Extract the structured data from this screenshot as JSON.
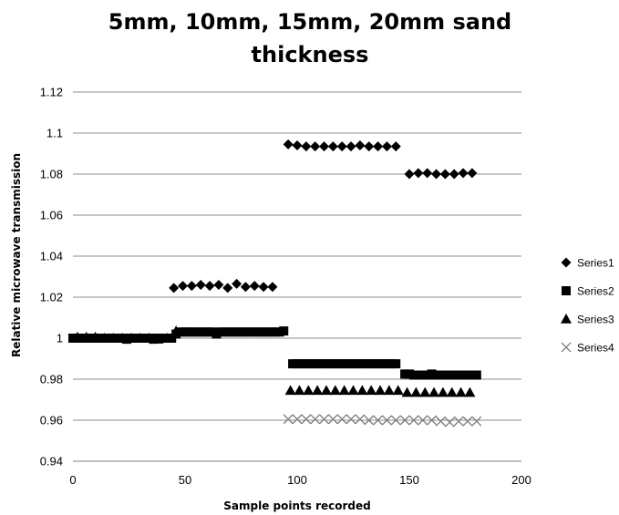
{
  "chart_data": {
    "type": "scatter",
    "title_lines": [
      "5mm, 10mm, 15mm, 20mm sand",
      "thickness"
    ],
    "xlabel": "Sample points recorded",
    "ylabel": "Relative microwave transmission",
    "xlim": [
      0,
      200
    ],
    "ylim": [
      0.94,
      1.12
    ],
    "x_ticks": [
      "0",
      "50",
      "100",
      "150",
      "200"
    ],
    "y_ticks": [
      "0.94",
      "0.96",
      "0.98",
      "1",
      "1.02",
      "1.04",
      "1.06",
      "1.08",
      "1.1",
      "1.12"
    ],
    "grid": "horizontal",
    "legend_position": "right",
    "series": [
      {
        "name": "Series1",
        "marker": "diamond",
        "color": "#000000",
        "points": [
          [
            45,
            1.0245
          ],
          [
            49,
            1.0255
          ],
          [
            53,
            1.0255
          ],
          [
            57,
            1.026
          ],
          [
            61,
            1.0255
          ],
          [
            65,
            1.026
          ],
          [
            69,
            1.0245
          ],
          [
            73,
            1.0265
          ],
          [
            77,
            1.025
          ],
          [
            81,
            1.0255
          ],
          [
            85,
            1.025
          ],
          [
            89,
            1.025
          ],
          [
            96,
            1.0945
          ],
          [
            100,
            1.094
          ],
          [
            104,
            1.0935
          ],
          [
            108,
            1.0935
          ],
          [
            112,
            1.0935
          ],
          [
            116,
            1.0935
          ],
          [
            120,
            1.0935
          ],
          [
            124,
            1.0935
          ],
          [
            128,
            1.094
          ],
          [
            132,
            1.0935
          ],
          [
            136,
            1.0935
          ],
          [
            140,
            1.0935
          ],
          [
            144,
            1.0935
          ],
          [
            150,
            1.08
          ],
          [
            154,
            1.0805
          ],
          [
            158,
            1.0805
          ],
          [
            162,
            1.08
          ],
          [
            166,
            1.08
          ],
          [
            170,
            1.08
          ],
          [
            174,
            1.0805
          ],
          [
            178,
            1.0805
          ]
        ]
      },
      {
        "name": "Series2",
        "marker": "square",
        "color": "#000000",
        "points": [
          [
            0,
            1.0
          ],
          [
            2,
            1.0
          ],
          [
            4,
            1.0
          ],
          [
            6,
            1.0
          ],
          [
            8,
            1.0
          ],
          [
            10,
            1.0
          ],
          [
            12,
            1.0
          ],
          [
            14,
            1.0
          ],
          [
            16,
            1.0
          ],
          [
            18,
            1.0
          ],
          [
            20,
            1.0
          ],
          [
            22,
            1.0
          ],
          [
            24,
            0.9995
          ],
          [
            26,
            1.0
          ],
          [
            28,
            1.0
          ],
          [
            30,
            1.0
          ],
          [
            32,
            1.0
          ],
          [
            34,
            1.0
          ],
          [
            36,
            0.9995
          ],
          [
            38,
            1.0
          ],
          [
            40,
            1.0
          ],
          [
            42,
            1.0
          ],
          [
            44,
            1.0
          ],
          [
            46,
            1.002
          ],
          [
            48,
            1.003
          ],
          [
            50,
            1.003
          ],
          [
            52,
            1.003
          ],
          [
            54,
            1.003
          ],
          [
            56,
            1.003
          ],
          [
            58,
            1.003
          ],
          [
            60,
            1.003
          ],
          [
            62,
            1.003
          ],
          [
            64,
            1.002
          ],
          [
            66,
            1.003
          ],
          [
            68,
            1.003
          ],
          [
            70,
            1.003
          ],
          [
            72,
            1.003
          ],
          [
            74,
            1.003
          ],
          [
            76,
            1.003
          ],
          [
            78,
            1.003
          ],
          [
            80,
            1.003
          ],
          [
            82,
            1.003
          ],
          [
            84,
            1.003
          ],
          [
            86,
            1.003
          ],
          [
            88,
            1.003
          ],
          [
            90,
            1.003
          ],
          [
            92,
            1.003
          ],
          [
            94,
            1.0035
          ],
          [
            98,
            0.9875
          ],
          [
            100,
            0.9875
          ],
          [
            102,
            0.9875
          ],
          [
            104,
            0.9875
          ],
          [
            106,
            0.9875
          ],
          [
            108,
            0.9875
          ],
          [
            110,
            0.9875
          ],
          [
            112,
            0.9875
          ],
          [
            114,
            0.9875
          ],
          [
            116,
            0.9875
          ],
          [
            118,
            0.9875
          ],
          [
            120,
            0.9875
          ],
          [
            122,
            0.9875
          ],
          [
            124,
            0.9875
          ],
          [
            126,
            0.9875
          ],
          [
            128,
            0.9875
          ],
          [
            130,
            0.9875
          ],
          [
            132,
            0.9875
          ],
          [
            134,
            0.9875
          ],
          [
            136,
            0.9875
          ],
          [
            138,
            0.9875
          ],
          [
            140,
            0.9875
          ],
          [
            142,
            0.9875
          ],
          [
            144,
            0.9875
          ],
          [
            148,
            0.9825
          ],
          [
            150,
            0.9825
          ],
          [
            152,
            0.982
          ],
          [
            154,
            0.982
          ],
          [
            156,
            0.982
          ],
          [
            158,
            0.982
          ],
          [
            160,
            0.9825
          ],
          [
            162,
            0.982
          ],
          [
            164,
            0.982
          ],
          [
            166,
            0.982
          ],
          [
            168,
            0.982
          ],
          [
            170,
            0.982
          ],
          [
            172,
            0.982
          ],
          [
            174,
            0.982
          ],
          [
            176,
            0.982
          ],
          [
            178,
            0.982
          ],
          [
            180,
            0.982
          ]
        ]
      },
      {
        "name": "Series3",
        "marker": "triangle",
        "color": "#000000",
        "points": [
          [
            2,
            1.0005
          ],
          [
            6,
            1.0005
          ],
          [
            10,
            1.0005
          ],
          [
            14,
            1.0
          ],
          [
            18,
            1.0
          ],
          [
            22,
            1.0
          ],
          [
            26,
            1.0
          ],
          [
            30,
            1.0
          ],
          [
            34,
            1.0
          ],
          [
            38,
            0.9995
          ],
          [
            42,
            1.0
          ],
          [
            46,
            1.0035
          ],
          [
            97,
            0.9745
          ],
          [
            101,
            0.9745
          ],
          [
            105,
            0.9745
          ],
          [
            109,
            0.9745
          ],
          [
            113,
            0.9745
          ],
          [
            117,
            0.9745
          ],
          [
            121,
            0.9745
          ],
          [
            125,
            0.9745
          ],
          [
            129,
            0.9745
          ],
          [
            133,
            0.9745
          ],
          [
            137,
            0.9745
          ],
          [
            141,
            0.9745
          ],
          [
            145,
            0.9745
          ],
          [
            149,
            0.9735
          ],
          [
            153,
            0.9735
          ],
          [
            157,
            0.9735
          ],
          [
            161,
            0.9735
          ],
          [
            165,
            0.9735
          ],
          [
            169,
            0.9735
          ],
          [
            173,
            0.9735
          ],
          [
            177,
            0.9735
          ]
        ]
      },
      {
        "name": "Series4",
        "marker": "x",
        "color": "#7f7f7f",
        "points": [
          [
            96,
            0.9605
          ],
          [
            100,
            0.9605
          ],
          [
            104,
            0.9605
          ],
          [
            108,
            0.9605
          ],
          [
            112,
            0.9605
          ],
          [
            116,
            0.9605
          ],
          [
            120,
            0.9605
          ],
          [
            124,
            0.9605
          ],
          [
            128,
            0.9605
          ],
          [
            132,
            0.96
          ],
          [
            136,
            0.96
          ],
          [
            140,
            0.96
          ],
          [
            144,
            0.96
          ],
          [
            148,
            0.96
          ],
          [
            152,
            0.96
          ],
          [
            156,
            0.96
          ],
          [
            160,
            0.96
          ],
          [
            164,
            0.9595
          ],
          [
            168,
            0.959
          ],
          [
            172,
            0.9595
          ],
          [
            176,
            0.9595
          ],
          [
            180,
            0.9595
          ]
        ]
      }
    ]
  }
}
